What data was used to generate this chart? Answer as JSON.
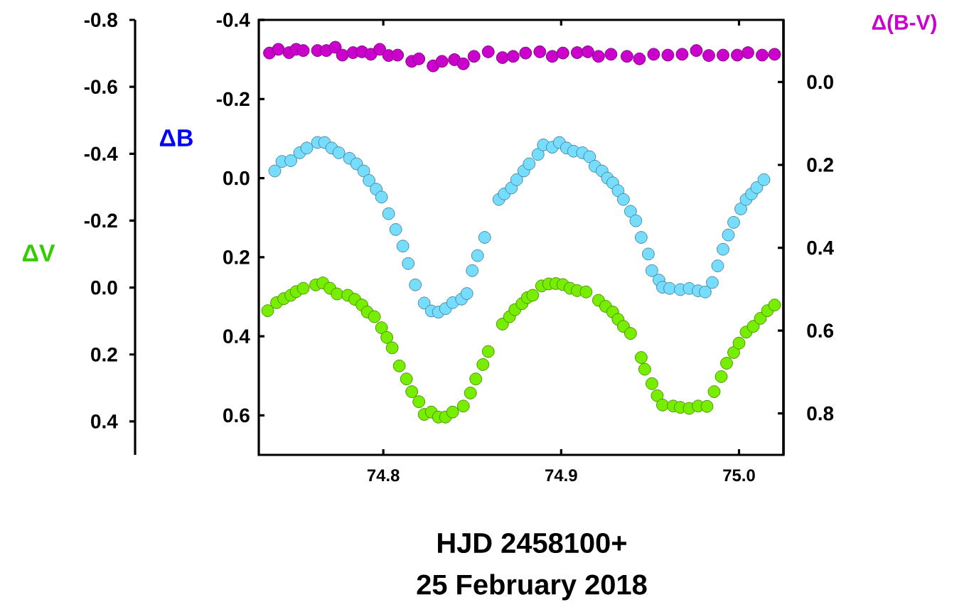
{
  "chart_data": {
    "type": "scatter",
    "marker": "circle",
    "xlabel": "HJD 2458100+",
    "annotations": [
      "25 February 2018"
    ],
    "ylabel": "ΔB",
    "y2label": "Δ(B-V)",
    "y3label": "ΔV",
    "xlim": [
      74.73,
      75.025
    ],
    "xticks": [
      74.8,
      74.9,
      {
        "value": 75.0,
        "label": "75.0"
      }
    ],
    "ylim": [
      0.7,
      -0.4
    ],
    "yticks": [
      -0.4,
      -0.2,
      {
        "value": 0,
        "label": "0.0"
      },
      0.2,
      0.4,
      0.6
    ],
    "y2lim": [
      0.9,
      -0.15
    ],
    "y2ticks": [
      {
        "value": 0,
        "label": "0.0"
      },
      0.2,
      0.4,
      0.6,
      0.8
    ],
    "y3lim": [
      0.5,
      -0.8
    ],
    "y3ticks": [
      -0.8,
      -0.6,
      -0.4,
      -0.2,
      {
        "value": 0,
        "label": "0.0"
      },
      0.2,
      0.4
    ],
    "series": [
      {
        "axis": "y2",
        "color": "#cc00cc",
        "x": [
          74.736,
          74.741,
          74.747,
          74.751,
          74.755,
          74.763,
          74.768,
          74.773,
          74.777,
          74.783,
          74.788,
          74.793,
          74.798,
          74.803,
          74.808,
          74.816,
          74.82,
          74.828,
          74.833,
          74.84,
          74.845,
          74.851,
          74.859,
          74.867,
          74.873,
          74.88,
          74.888,
          74.895,
          74.901,
          74.909,
          74.915,
          74.921,
          74.928,
          74.937,
          74.944,
          74.952,
          74.96,
          74.968,
          74.976,
          74.983,
          74.991,
          74.999,
          75.005,
          75.013,
          75.02
        ],
        "values": [
          -0.07,
          -0.079,
          -0.071,
          -0.079,
          -0.076,
          -0.076,
          -0.076,
          -0.084,
          -0.065,
          -0.071,
          -0.073,
          -0.067,
          -0.079,
          -0.064,
          -0.065,
          -0.05,
          -0.056,
          -0.039,
          -0.05,
          -0.054,
          -0.044,
          -0.062,
          -0.073,
          -0.059,
          -0.062,
          -0.07,
          -0.073,
          -0.062,
          -0.07,
          -0.071,
          -0.073,
          -0.062,
          -0.067,
          -0.062,
          -0.056,
          -0.067,
          -0.065,
          -0.067,
          -0.076,
          -0.064,
          -0.065,
          -0.065,
          -0.071,
          -0.065,
          -0.067
        ]
      },
      {
        "axis": "y",
        "color": "#77ddff",
        "x": [
          74.739,
          74.743,
          74.748,
          74.753,
          74.757,
          74.763,
          74.767,
          74.771,
          74.775,
          74.781,
          74.785,
          74.789,
          74.792,
          74.796,
          74.799,
          74.803,
          74.807,
          74.811,
          74.814,
          74.818,
          74.823,
          74.827,
          74.831,
          74.835,
          74.839,
          74.844,
          74.847,
          74.85,
          74.853,
          74.857,
          74.865,
          74.868,
          74.872,
          74.875,
          74.879,
          74.882,
          74.887,
          74.89,
          74.895,
          74.899,
          74.903,
          74.907,
          74.912,
          74.916,
          74.919,
          74.923,
          74.926,
          74.929,
          74.932,
          74.935,
          74.939,
          74.942,
          74.945,
          74.949,
          74.951,
          74.955,
          74.957,
          74.961,
          74.967,
          74.972,
          74.977,
          74.981,
          74.985,
          74.988,
          74.991,
          74.994,
          74.997,
          75.001,
          75.004,
          75.007,
          75.01,
          75.014
        ],
        "values": [
          -0.018,
          -0.042,
          -0.044,
          -0.064,
          -0.076,
          -0.09,
          -0.09,
          -0.076,
          -0.064,
          -0.05,
          -0.036,
          -0.018,
          0.006,
          0.028,
          0.048,
          0.09,
          0.13,
          0.172,
          0.216,
          0.27,
          0.316,
          0.336,
          0.339,
          0.33,
          0.315,
          0.306,
          0.292,
          0.234,
          0.196,
          0.15,
          0.054,
          0.04,
          0.025,
          0.004,
          -0.018,
          -0.036,
          -0.06,
          -0.084,
          -0.078,
          -0.09,
          -0.076,
          -0.068,
          -0.064,
          -0.054,
          -0.03,
          -0.018,
          0.0,
          0.012,
          0.032,
          0.054,
          0.084,
          0.108,
          0.15,
          0.192,
          0.234,
          0.258,
          0.276,
          0.279,
          0.282,
          0.279,
          0.285,
          0.288,
          0.264,
          0.222,
          0.18,
          0.144,
          0.112,
          0.078,
          0.054,
          0.04,
          0.024,
          0.004
        ]
      },
      {
        "axis": "y3",
        "color": "#77ee00",
        "x": [
          74.735,
          74.74,
          74.744,
          74.748,
          74.751,
          74.755,
          74.762,
          74.766,
          74.77,
          74.774,
          74.78,
          74.784,
          74.788,
          74.791,
          74.795,
          74.799,
          74.802,
          74.805,
          74.809,
          74.813,
          74.816,
          74.82,
          74.823,
          74.827,
          74.831,
          74.835,
          74.839,
          74.845,
          74.849,
          74.852,
          74.856,
          74.859,
          74.867,
          74.871,
          74.874,
          74.878,
          74.881,
          74.884,
          74.889,
          74.893,
          74.897,
          74.901,
          74.905,
          74.909,
          74.914,
          74.921,
          74.925,
          74.929,
          74.932,
          74.935,
          74.939,
          74.945,
          74.947,
          74.951,
          74.954,
          74.957,
          74.963,
          74.967,
          74.972,
          74.977,
          74.982,
          74.986,
          74.99,
          74.993,
          74.997,
          75.0,
          75.004,
          75.008,
          75.012,
          75.016,
          75.02
        ],
        "values": [
          0.069,
          0.045,
          0.033,
          0.023,
          0.012,
          0.002,
          -0.008,
          -0.014,
          0.002,
          0.019,
          0.023,
          0.035,
          0.052,
          0.073,
          0.087,
          0.12,
          0.149,
          0.18,
          0.234,
          0.273,
          0.311,
          0.341,
          0.379,
          0.372,
          0.387,
          0.387,
          0.372,
          0.354,
          0.315,
          0.273,
          0.23,
          0.191,
          0.109,
          0.087,
          0.066,
          0.048,
          0.03,
          0.023,
          -0.005,
          -0.011,
          -0.012,
          -0.009,
          0.002,
          0.009,
          0.013,
          0.038,
          0.056,
          0.073,
          0.095,
          0.116,
          0.137,
          0.209,
          0.244,
          0.287,
          0.323,
          0.351,
          0.354,
          0.358,
          0.361,
          0.354,
          0.355,
          0.311,
          0.266,
          0.226,
          0.194,
          0.166,
          0.133,
          0.116,
          0.092,
          0.069,
          0.052
        ]
      }
    ]
  }
}
